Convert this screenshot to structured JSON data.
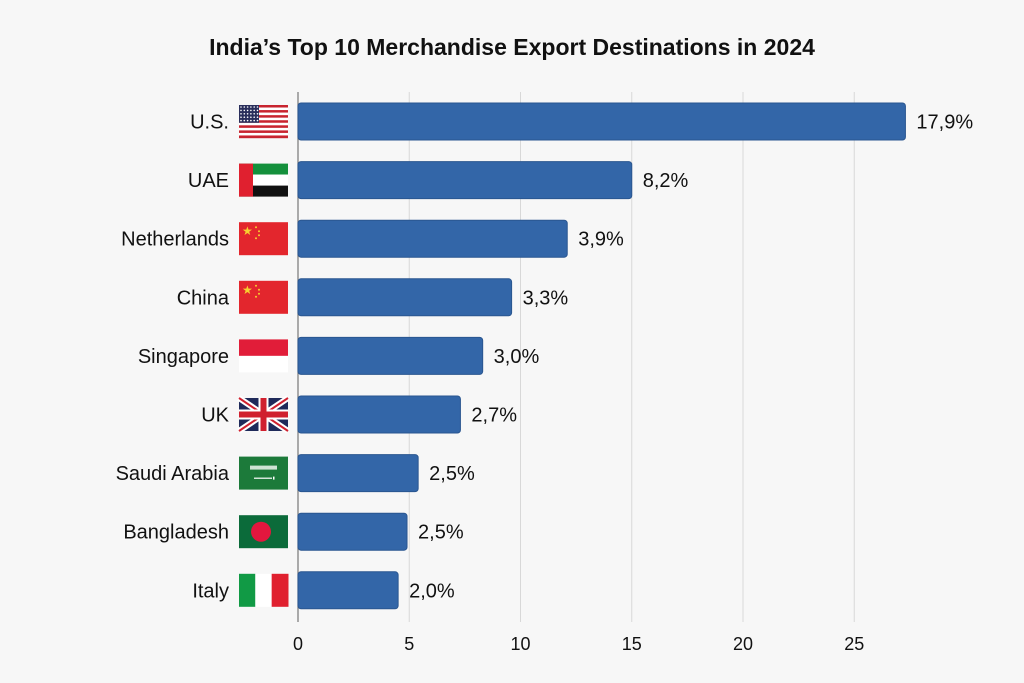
{
  "chart_data": {
    "type": "bar",
    "orientation": "horizontal",
    "title": "India’s Top 10 Merchandise Export Destinations in 2024",
    "categories": [
      "U.S.",
      "UAE",
      "Netherlands",
      "China",
      "Singapore",
      "UK",
      "Saudi Arabia",
      "Bangladesh",
      "Italy"
    ],
    "flags": [
      "us-flag",
      "uae-flag",
      "china-flag",
      "china-flag",
      "indonesia-flag",
      "uk-flag",
      "saudi-arabia-flag",
      "bangladesh-flag",
      "italy-flag"
    ],
    "values": [
      27.3,
      15.0,
      12.1,
      9.6,
      8.3,
      7.3,
      5.4,
      4.9,
      4.5
    ],
    "data_labels": [
      "17,9%",
      "8,2%",
      "3,9%",
      "3,3%",
      "3,0%",
      "2,7%",
      "2,5%",
      "2,5%",
      "2,0%"
    ],
    "xlim": [
      0,
      28
    ],
    "xticks": [
      0,
      5,
      10,
      15,
      20,
      25
    ],
    "xtick_labels": [
      "0",
      "5",
      "10",
      "15",
      "20",
      "25"
    ],
    "grid": true,
    "bar_color": "#3366a8",
    "xlabel": "",
    "ylabel": ""
  }
}
